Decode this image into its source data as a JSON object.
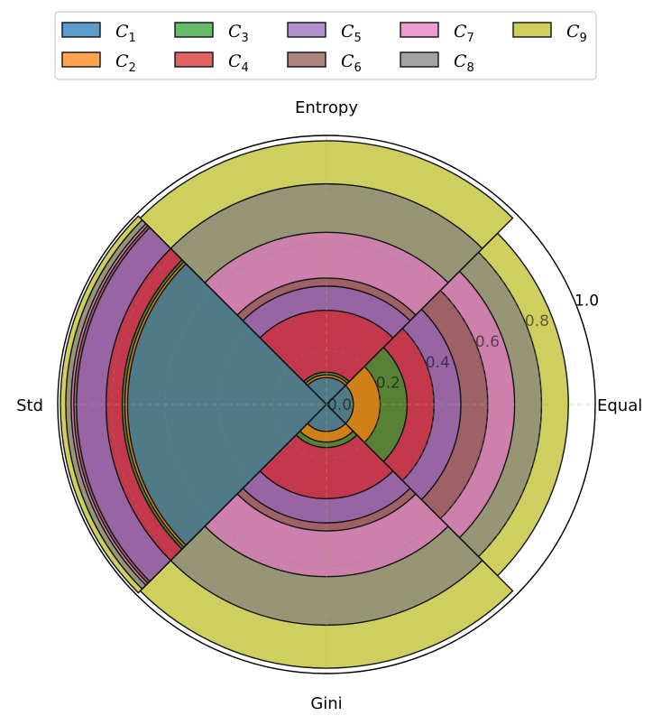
{
  "chart_data": {
    "type": "nested polar bar (sector)",
    "directions": [
      "Equal",
      "Entropy",
      "Std",
      "Gini"
    ],
    "axes": {
      "entropy": "Entropy",
      "equal": "Equal",
      "std": "Std",
      "gini": "Gini"
    },
    "radial_ticks": [
      "0.0",
      "0.2",
      "0.4",
      "0.6",
      "0.8",
      "1.0"
    ],
    "rlim": [
      0,
      1
    ],
    "grid": true,
    "legend_position": "top",
    "series": [
      {
        "name": "C",
        "sub": "1",
        "color": "#1f77b4",
        "values": {
          "Equal": 0.1,
          "Entropy": 0.1,
          "Std": 0.74,
          "Gini": 0.1
        }
      },
      {
        "name": "C",
        "sub": "2",
        "color": "#ff7f0e",
        "values": {
          "Equal": 0.2,
          "Entropy": 0.11,
          "Std": 0.75,
          "Gini": 0.14
        }
      },
      {
        "name": "C",
        "sub": "3",
        "color": "#2ca02c",
        "values": {
          "Equal": 0.3,
          "Entropy": 0.12,
          "Std": 0.76,
          "Gini": 0.16
        }
      },
      {
        "name": "C",
        "sub": "4",
        "color": "#d62728",
        "values": {
          "Equal": 0.4,
          "Entropy": 0.35,
          "Std": 0.82,
          "Gini": 0.35
        }
      },
      {
        "name": "C",
        "sub": "5",
        "color": "#9467bd",
        "values": {
          "Equal": 0.5,
          "Entropy": 0.44,
          "Std": 0.93,
          "Gini": 0.44
        }
      },
      {
        "name": "C",
        "sub": "6",
        "color": "#8c564b",
        "values": {
          "Equal": 0.6,
          "Entropy": 0.47,
          "Std": 0.94,
          "Gini": 0.47
        }
      },
      {
        "name": "C",
        "sub": "7",
        "color": "#e377c2",
        "values": {
          "Equal": 0.7,
          "Entropy": 0.64,
          "Std": 0.95,
          "Gini": 0.64
        }
      },
      {
        "name": "C",
        "sub": "8",
        "color": "#7f7f7f",
        "values": {
          "Equal": 0.8,
          "Entropy": 0.82,
          "Std": 0.97,
          "Gini": 0.82
        }
      },
      {
        "name": "C",
        "sub": "9",
        "color": "#bcbd22",
        "values": {
          "Equal": 0.9,
          "Entropy": 0.98,
          "Std": 0.99,
          "Gini": 0.98
        }
      }
    ]
  }
}
